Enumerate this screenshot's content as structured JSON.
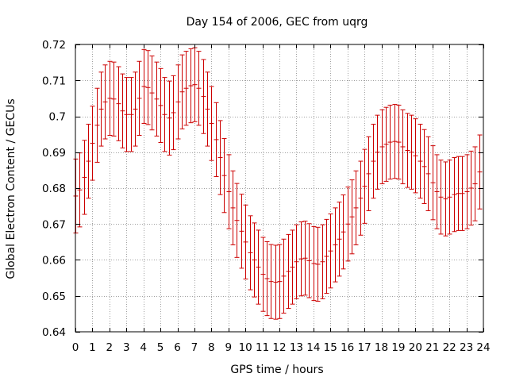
{
  "chart_data": {
    "type": "scatter",
    "title": "Day 154 of 2006, GEC from uqrg",
    "xlabel": "GPS time / hours",
    "ylabel": "Global Electron Content / GECUs",
    "xlim": [
      0,
      24
    ],
    "ylim": [
      0.64,
      0.72
    ],
    "grid": true,
    "series_color": "#cc0000",
    "grid_color": "#a0a0a0",
    "x_ticks": [
      0,
      1,
      2,
      3,
      4,
      5,
      6,
      7,
      8,
      9,
      10,
      11,
      12,
      13,
      14,
      15,
      16,
      17,
      18,
      19,
      20,
      21,
      22,
      23,
      24
    ],
    "x_tick_labels": [
      "0",
      "1",
      "2",
      "3",
      "4",
      "5",
      "6",
      "7",
      "8",
      "9",
      "10",
      "11",
      "12",
      "13",
      "14",
      "15",
      "16",
      "17",
      "18",
      "19",
      "20",
      "21",
      "22",
      "23",
      "24"
    ],
    "y_ticks": [
      0.64,
      0.65,
      0.66,
      0.67,
      0.68,
      0.69,
      0.7,
      0.71,
      0.72
    ],
    "y_tick_labels": [
      "0.64",
      "0.65",
      "0.66",
      "0.67",
      "0.68",
      "0.69",
      "0.7",
      "0.71",
      "0.72"
    ],
    "error": 0.0103,
    "points": [
      {
        "x": 0.0,
        "y": 0.6778
      },
      {
        "x": 0.25,
        "y": 0.6795
      },
      {
        "x": 0.5,
        "y": 0.683
      },
      {
        "x": 0.75,
        "y": 0.6875
      },
      {
        "x": 1.0,
        "y": 0.6925
      },
      {
        "x": 1.25,
        "y": 0.6975
      },
      {
        "x": 1.5,
        "y": 0.702
      },
      {
        "x": 1.75,
        "y": 0.704
      },
      {
        "x": 2.0,
        "y": 0.705
      },
      {
        "x": 2.25,
        "y": 0.7048
      },
      {
        "x": 2.5,
        "y": 0.7035
      },
      {
        "x": 2.75,
        "y": 0.7015
      },
      {
        "x": 3.0,
        "y": 0.7005
      },
      {
        "x": 3.25,
        "y": 0.7005
      },
      {
        "x": 3.5,
        "y": 0.702
      },
      {
        "x": 3.75,
        "y": 0.705
      },
      {
        "x": 4.0,
        "y": 0.7083
      },
      {
        "x": 4.25,
        "y": 0.708
      },
      {
        "x": 4.5,
        "y": 0.7065
      },
      {
        "x": 4.75,
        "y": 0.7048
      },
      {
        "x": 5.0,
        "y": 0.703
      },
      {
        "x": 5.25,
        "y": 0.7005
      },
      {
        "x": 5.5,
        "y": 0.6995
      },
      {
        "x": 5.75,
        "y": 0.701
      },
      {
        "x": 6.0,
        "y": 0.704
      },
      {
        "x": 6.25,
        "y": 0.7068
      },
      {
        "x": 6.5,
        "y": 0.7078
      },
      {
        "x": 6.75,
        "y": 0.7085
      },
      {
        "x": 7.0,
        "y": 0.7088
      },
      {
        "x": 7.25,
        "y": 0.7078
      },
      {
        "x": 7.5,
        "y": 0.7055
      },
      {
        "x": 7.75,
        "y": 0.702
      },
      {
        "x": 8.0,
        "y": 0.698
      },
      {
        "x": 8.25,
        "y": 0.6935
      },
      {
        "x": 8.5,
        "y": 0.6885
      },
      {
        "x": 8.75,
        "y": 0.6835
      },
      {
        "x": 9.0,
        "y": 0.679
      },
      {
        "x": 9.25,
        "y": 0.6745
      },
      {
        "x": 9.5,
        "y": 0.671
      },
      {
        "x": 9.75,
        "y": 0.668
      },
      {
        "x": 10.0,
        "y": 0.665
      },
      {
        "x": 10.25,
        "y": 0.662
      },
      {
        "x": 10.5,
        "y": 0.66
      },
      {
        "x": 10.75,
        "y": 0.658
      },
      {
        "x": 11.0,
        "y": 0.656
      },
      {
        "x": 11.25,
        "y": 0.6548
      },
      {
        "x": 11.5,
        "y": 0.654
      },
      {
        "x": 11.75,
        "y": 0.6538
      },
      {
        "x": 12.0,
        "y": 0.654
      },
      {
        "x": 12.25,
        "y": 0.6555
      },
      {
        "x": 12.5,
        "y": 0.6568
      },
      {
        "x": 12.75,
        "y": 0.658
      },
      {
        "x": 13.0,
        "y": 0.6595
      },
      {
        "x": 13.25,
        "y": 0.6603
      },
      {
        "x": 13.5,
        "y": 0.6605
      },
      {
        "x": 13.75,
        "y": 0.6598
      },
      {
        "x": 14.0,
        "y": 0.659
      },
      {
        "x": 14.25,
        "y": 0.6588
      },
      {
        "x": 14.5,
        "y": 0.6595
      },
      {
        "x": 14.75,
        "y": 0.661
      },
      {
        "x": 15.0,
        "y": 0.6625
      },
      {
        "x": 15.25,
        "y": 0.6642
      },
      {
        "x": 15.5,
        "y": 0.6658
      },
      {
        "x": 15.75,
        "y": 0.6678
      },
      {
        "x": 16.0,
        "y": 0.67
      },
      {
        "x": 16.25,
        "y": 0.672
      },
      {
        "x": 16.5,
        "y": 0.6745
      },
      {
        "x": 16.75,
        "y": 0.6772
      },
      {
        "x": 17.0,
        "y": 0.6805
      },
      {
        "x": 17.25,
        "y": 0.684
      },
      {
        "x": 17.5,
        "y": 0.6875
      },
      {
        "x": 17.75,
        "y": 0.69
      },
      {
        "x": 18.0,
        "y": 0.6915
      },
      {
        "x": 18.25,
        "y": 0.6922
      },
      {
        "x": 18.5,
        "y": 0.6928
      },
      {
        "x": 18.75,
        "y": 0.693
      },
      {
        "x": 19.0,
        "y": 0.6928
      },
      {
        "x": 19.25,
        "y": 0.6915
      },
      {
        "x": 19.5,
        "y": 0.6905
      },
      {
        "x": 19.75,
        "y": 0.69
      },
      {
        "x": 20.0,
        "y": 0.689
      },
      {
        "x": 20.25,
        "y": 0.6875
      },
      {
        "x": 20.5,
        "y": 0.686
      },
      {
        "x": 20.75,
        "y": 0.684
      },
      {
        "x": 21.0,
        "y": 0.6815
      },
      {
        "x": 21.25,
        "y": 0.679
      },
      {
        "x": 21.5,
        "y": 0.6775
      },
      {
        "x": 21.75,
        "y": 0.677
      },
      {
        "x": 22.0,
        "y": 0.6775
      },
      {
        "x": 22.25,
        "y": 0.6782
      },
      {
        "x": 22.5,
        "y": 0.6785
      },
      {
        "x": 22.75,
        "y": 0.6785
      },
      {
        "x": 23.0,
        "y": 0.679
      },
      {
        "x": 23.25,
        "y": 0.68
      },
      {
        "x": 23.5,
        "y": 0.6812
      },
      {
        "x": 23.75,
        "y": 0.6845
      }
    ]
  }
}
